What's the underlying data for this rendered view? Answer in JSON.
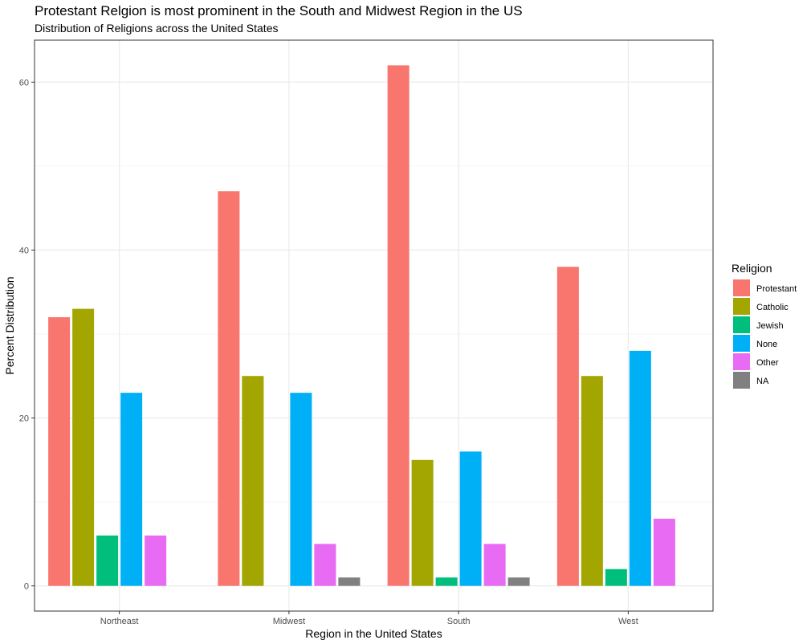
{
  "chart_data": {
    "type": "bar",
    "title": "Protestant Relgion is most prominent in the South and Midwest Region in the US",
    "subtitle": "Distribution of Religions across the United States",
    "xlabel": "Region in the United States",
    "ylabel": "Percent Distribution",
    "categories": [
      "Northeast",
      "Midwest",
      "South",
      "West"
    ],
    "ylim": [
      -3,
      65
    ],
    "yticks": [
      0,
      20,
      40,
      60
    ],
    "grid": true,
    "legend": {
      "title": "Religion",
      "position": "right"
    },
    "series": [
      {
        "name": "Protestant",
        "color": "#F8766D",
        "values": [
          32,
          47,
          62,
          38
        ]
      },
      {
        "name": "Catholic",
        "color": "#A3A500",
        "values": [
          33,
          25,
          15,
          25
        ]
      },
      {
        "name": "Jewish",
        "color": "#00BF7D",
        "values": [
          6,
          null,
          1,
          2
        ]
      },
      {
        "name": "None",
        "color": "#00B0F6",
        "values": [
          23,
          23,
          16,
          28
        ]
      },
      {
        "name": "Other",
        "color": "#E76BF3",
        "values": [
          6,
          5,
          5,
          8
        ]
      },
      {
        "name": "NA",
        "color": "#808080",
        "values": [
          null,
          1,
          1,
          null
        ]
      }
    ]
  }
}
